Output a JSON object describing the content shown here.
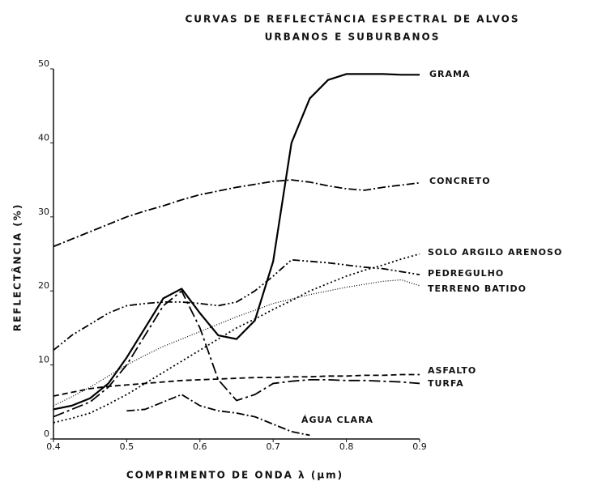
{
  "chart_data": {
    "type": "line",
    "title": [
      "CURVAS DE REFLECTÂNCIA ESPECTRAL DE ALVOS",
      "URBANOS E SUBURBANOS"
    ],
    "xlabel": "COMPRIMENTO DE ONDA λ (µm)",
    "ylabel": "REFLECTÂNCIA (%)",
    "x": [
      0.4,
      0.425,
      0.45,
      0.475,
      0.5,
      0.525,
      0.55,
      0.575,
      0.6,
      0.625,
      0.65,
      0.675,
      0.7,
      0.725,
      0.75,
      0.775,
      0.8,
      0.825,
      0.85,
      0.875,
      0.9
    ],
    "xlim": [
      0.4,
      0.9
    ],
    "xticks": [
      0.4,
      0.5,
      0.6,
      0.7,
      0.8,
      0.9
    ],
    "ylim": [
      0,
      50
    ],
    "yticks": [
      0,
      10,
      20,
      30,
      40,
      50
    ],
    "grid": false,
    "series": [
      {
        "name": "GRAMA",
        "color": "#000000",
        "dash": "solid",
        "values": [
          4.0,
          4.5,
          5.5,
          7.5,
          11,
          15,
          19,
          20.3,
          17,
          14,
          13.5,
          16,
          24,
          40,
          46,
          48.5,
          49.3,
          49.3,
          49.3,
          49.2,
          49.2
        ]
      },
      {
        "name": "CONCRETO",
        "color": "#000000",
        "dash": "dashdot",
        "values": [
          26,
          27,
          28,
          29,
          30,
          30.8,
          31.5,
          32.3,
          33,
          33.5,
          34,
          34.4,
          34.8,
          35,
          34.7,
          34.2,
          33.8,
          33.6,
          34,
          34.3,
          34.6
        ]
      },
      {
        "name": "SOLO ARGILO ARENOSO",
        "color": "#000000",
        "dash": "dotted",
        "values": [
          2.2,
          2.8,
          3.5,
          4.7,
          6,
          7.5,
          9,
          10.5,
          12,
          13.5,
          15,
          16.2,
          17.5,
          18.7,
          20,
          21,
          22,
          22.8,
          23.5,
          24.3,
          25
        ]
      },
      {
        "name": "PEDREGULHO",
        "color": "#000000",
        "dash": "dashdotdot",
        "values": [
          12,
          14,
          15.5,
          17,
          18,
          18.3,
          18.5,
          18.5,
          18.3,
          18,
          18.5,
          20,
          22,
          24.2,
          24,
          23.8,
          23.5,
          23.2,
          23,
          22.6,
          22.2
        ]
      },
      {
        "name": "TERRENO BATIDO",
        "color": "#000000",
        "dash": "finedot",
        "values": [
          4.5,
          5.7,
          7,
          8.5,
          10,
          11.3,
          12.5,
          13.5,
          14.5,
          15.5,
          16.5,
          17.4,
          18.3,
          18.9,
          19.5,
          20,
          20.5,
          20.9,
          21.3,
          21.5,
          20.7
        ]
      },
      {
        "name": "ASFALTO",
        "color": "#000000",
        "dash": "dashed",
        "values": [
          5.8,
          6.3,
          6.8,
          7.1,
          7.3,
          7.5,
          7.7,
          7.9,
          8,
          8.1,
          8.2,
          8.3,
          8.3,
          8.4,
          8.4,
          8.5,
          8.5,
          8.6,
          8.6,
          8.7,
          8.7
        ]
      },
      {
        "name": "TURFA",
        "color": "#000000",
        "dash": "longdashdot",
        "values": [
          3,
          4,
          5,
          7,
          10,
          14,
          18,
          20,
          15,
          8,
          5.2,
          6,
          7.5,
          7.8,
          8,
          8,
          7.9,
          7.9,
          7.8,
          7.7,
          7.5
        ]
      },
      {
        "name": "ÁGUA CLARA",
        "color": "#000000",
        "dash": "dashdot",
        "values": [
          null,
          null,
          null,
          null,
          3.8,
          4,
          5,
          6,
          4.5,
          3.8,
          3.5,
          3,
          2,
          1,
          0.5,
          null,
          null,
          null,
          null,
          null,
          null
        ]
      }
    ]
  }
}
